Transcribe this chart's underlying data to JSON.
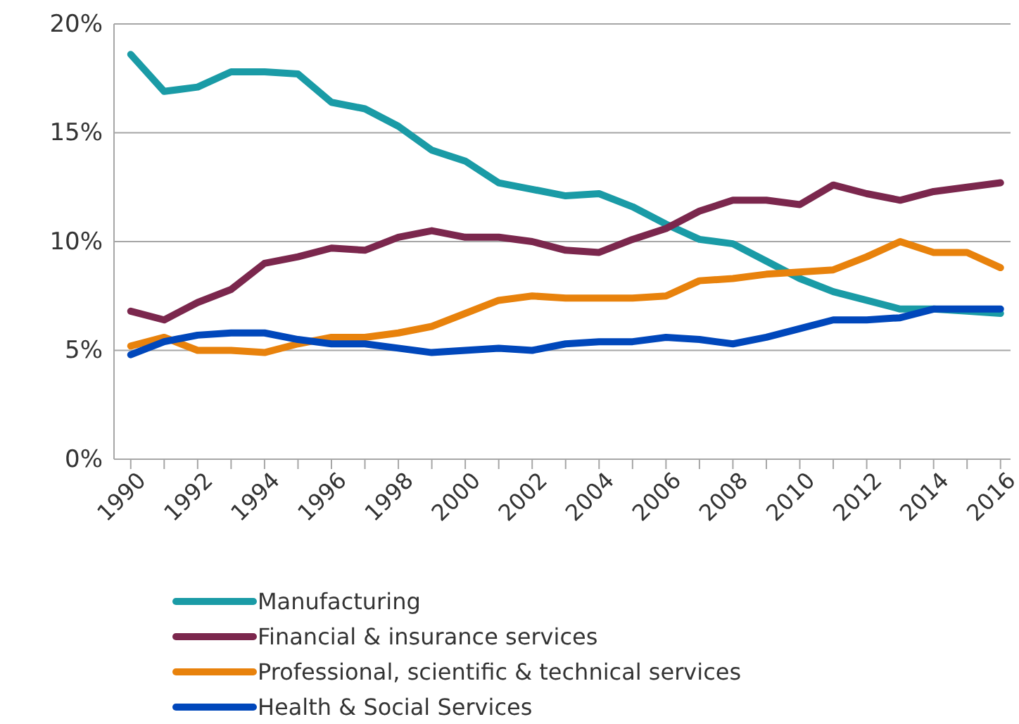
{
  "chart_data": {
    "type": "line",
    "x": [
      1990,
      1991,
      1992,
      1993,
      1994,
      1995,
      1996,
      1997,
      1998,
      1999,
      2000,
      2001,
      2002,
      2003,
      2004,
      2005,
      2006,
      2007,
      2008,
      2009,
      2010,
      2011,
      2012,
      2013,
      2014,
      2015,
      2016
    ],
    "series": [
      {
        "name": "Manufacturing",
        "color": "#1a9ba6",
        "values": [
          18.6,
          16.9,
          17.1,
          17.8,
          17.8,
          17.7,
          16.4,
          16.1,
          15.3,
          14.2,
          13.7,
          12.7,
          12.4,
          12.1,
          12.2,
          11.6,
          10.8,
          10.1,
          9.9,
          9.1,
          8.3,
          7.7,
          7.3,
          6.9,
          6.9,
          6.8,
          6.7
        ]
      },
      {
        "name": "Financial & insurance services",
        "color": "#7b274d",
        "values": [
          6.8,
          6.4,
          7.2,
          7.8,
          9.0,
          9.3,
          9.7,
          9.6,
          10.2,
          10.5,
          10.2,
          10.2,
          10.0,
          9.6,
          9.5,
          10.1,
          10.6,
          11.4,
          11.9,
          11.9,
          11.7,
          12.6,
          12.2,
          11.9,
          12.3,
          12.5,
          12.7
        ]
      },
      {
        "name": "Professional, scientific & technical services",
        "color": "#e8820c",
        "values": [
          5.2,
          5.6,
          5.0,
          5.0,
          4.9,
          5.3,
          5.6,
          5.6,
          5.8,
          6.1,
          6.7,
          7.3,
          7.5,
          7.4,
          7.4,
          7.4,
          7.5,
          8.2,
          8.3,
          8.5,
          8.6,
          8.7,
          9.3,
          10.0,
          9.5,
          9.5,
          8.8
        ]
      },
      {
        "name": "Health & Social Services",
        "color": "#0047bb",
        "values": [
          4.8,
          5.4,
          5.7,
          5.8,
          5.8,
          5.5,
          5.3,
          5.3,
          5.1,
          4.9,
          5.0,
          5.1,
          5.0,
          5.3,
          5.4,
          5.4,
          5.6,
          5.5,
          5.3,
          5.6,
          6.0,
          6.4,
          6.4,
          6.5,
          6.9,
          6.9,
          6.9
        ]
      }
    ],
    "xlim": [
      1989.5,
      2016.3
    ],
    "xticks": [
      {
        "value": 1990,
        "label": "1990"
      },
      {
        "value": 1991,
        "label": null
      },
      {
        "value": 1992,
        "label": "1992"
      },
      {
        "value": 1993,
        "label": null
      },
      {
        "value": 1994,
        "label": "1994"
      },
      {
        "value": 1995,
        "label": null
      },
      {
        "value": 1996,
        "label": "1996"
      },
      {
        "value": 1997,
        "label": null
      },
      {
        "value": 1998,
        "label": "1998"
      },
      {
        "value": 1999,
        "label": null
      },
      {
        "value": 2000,
        "label": "2000"
      },
      {
        "value": 2001,
        "label": null
      },
      {
        "value": 2002,
        "label": "2002"
      },
      {
        "value": 2003,
        "label": null
      },
      {
        "value": 2004,
        "label": "2004"
      },
      {
        "value": 2005,
        "label": null
      },
      {
        "value": 2006,
        "label": "2006"
      },
      {
        "value": 2007,
        "label": null
      },
      {
        "value": 2008,
        "label": "2008"
      },
      {
        "value": 2009,
        "label": null
      },
      {
        "value": 2010,
        "label": "2010"
      },
      {
        "value": 2011,
        "label": null
      },
      {
        "value": 2012,
        "label": "2012"
      },
      {
        "value": 2013,
        "label": null
      },
      {
        "value": 2014,
        "label": "2014"
      },
      {
        "value": 2015,
        "label": null
      },
      {
        "value": 2016,
        "label": "2016"
      }
    ],
    "ylim": [
      0,
      20
    ],
    "yticks": [
      {
        "value": 0,
        "label": "0%"
      },
      {
        "value": 5,
        "label": "5%"
      },
      {
        "value": 10,
        "label": "10%"
      },
      {
        "value": 15,
        "label": "15%"
      },
      {
        "value": 20,
        "label": "20%"
      }
    ],
    "grid": "y",
    "legend": "bottom",
    "marker": "none",
    "line_style": "solid"
  }
}
